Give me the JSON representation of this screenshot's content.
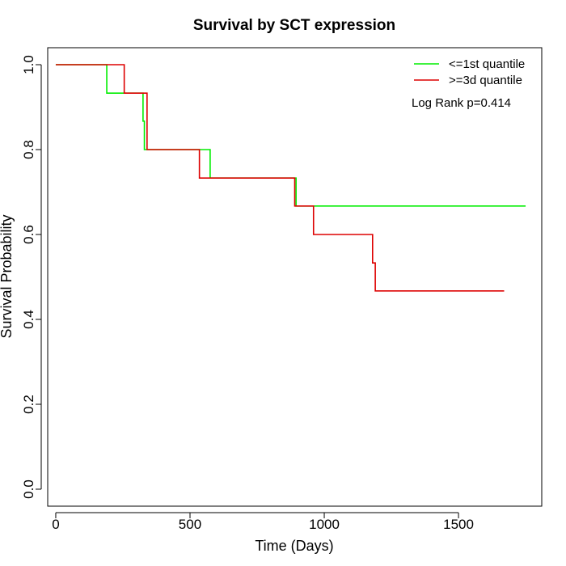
{
  "chart_data": {
    "type": "line",
    "title": "Survival by SCT expression",
    "xlabel": "Time (Days)",
    "ylabel": "Survival Probability",
    "xlim": [
      -30,
      1810
    ],
    "ylim": [
      -0.04,
      1.04
    ],
    "xticks": [
      0,
      500,
      1000,
      1500
    ],
    "yticks": [
      0.0,
      0.2,
      0.4,
      0.6,
      0.8,
      1.0
    ],
    "xtick_labels": [
      "0",
      "500",
      "1000",
      "1500"
    ],
    "ytick_labels": [
      "0.0",
      "0.2",
      "0.4",
      "0.6",
      "0.8",
      "1.0"
    ],
    "grid": false,
    "legend_position": "top-right",
    "annotation": "Log Rank p=0.414",
    "series": [
      {
        "name": "<=1st quantile",
        "color": "#00ee00",
        "step": true,
        "x": [
          0,
          190,
          325,
          330,
          575,
          895,
          1750
        ],
        "y": [
          1.0,
          0.933,
          0.867,
          0.8,
          0.733,
          0.667,
          0.667
        ]
      },
      {
        "name": ">=3d quantile",
        "color": "#dd0000",
        "step": true,
        "x": [
          0,
          255,
          340,
          535,
          890,
          960,
          1180,
          1190,
          1670
        ],
        "y": [
          1.0,
          0.933,
          0.8,
          0.733,
          0.667,
          0.6,
          0.533,
          0.467,
          0.467
        ]
      }
    ]
  }
}
